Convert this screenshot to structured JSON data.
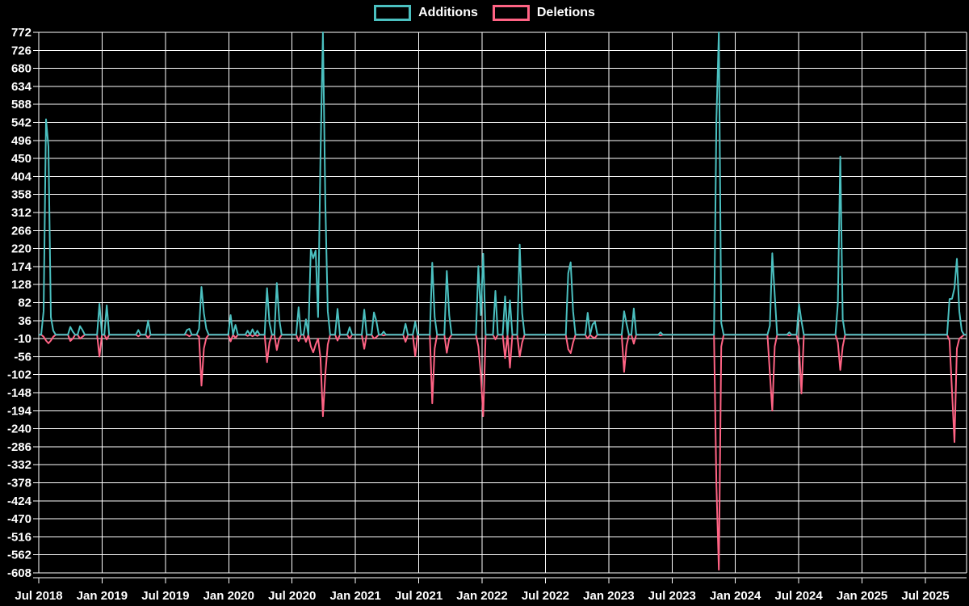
{
  "chart_data": {
    "type": "line",
    "title": "",
    "legend_position": "top",
    "background_color": "#000000",
    "grid_color": "#ffffff",
    "text_color": "#ffffff",
    "series": [
      {
        "name": "Additions",
        "color": "#4bc0c0"
      },
      {
        "name": "Deletions",
        "color": "#ff6384"
      }
    ],
    "y_axis": {
      "min": -608,
      "max": 772,
      "step": 46,
      "tick_labels": [
        "772",
        "726",
        "680",
        "634",
        "588",
        "542",
        "496",
        "450",
        "404",
        "358",
        "312",
        "266",
        "220",
        "174",
        "128",
        "82",
        "36",
        "-10",
        "-56",
        "-102",
        "-148",
        "-194",
        "-240",
        "-286",
        "-332",
        "-378",
        "-424",
        "-470",
        "-516",
        "-562",
        "-608"
      ]
    },
    "x_axis": {
      "tick_labels": [
        "Jul 2018",
        "Jan 2019",
        "Jul 2019",
        "Jan 2020",
        "Jul 2020",
        "Jan 2021",
        "Jul 2021",
        "Jan 2022",
        "Jul 2022",
        "Jan 2023",
        "Jul 2023",
        "Jan 2024",
        "Jul 2024",
        "Jan 2025",
        "Jul 2025"
      ]
    },
    "weeks": {
      "start_date": "2018-07-08",
      "count": 383
    },
    "default_additions": 0,
    "default_deletions": 0,
    "points": [
      {
        "week": 2,
        "date": "2018-07-22",
        "additions": 60,
        "deletions": -5
      },
      {
        "week": 3,
        "date": "2018-07-29",
        "additions": 550,
        "deletions": -15
      },
      {
        "week": 4,
        "date": "2018-08-05",
        "additions": 480,
        "deletions": -22
      },
      {
        "week": 5,
        "date": "2018-08-12",
        "additions": 45,
        "deletions": -15
      },
      {
        "week": 6,
        "date": "2018-08-19",
        "additions": 10,
        "deletions": -5
      },
      {
        "week": 13,
        "date": "2018-10-07",
        "additions": 20,
        "deletions": -16
      },
      {
        "week": 14,
        "date": "2018-10-14",
        "additions": 8,
        "deletions": -10
      },
      {
        "week": 17,
        "date": "2018-11-04",
        "additions": 22,
        "deletions": -10
      },
      {
        "week": 18,
        "date": "2018-11-11",
        "additions": 12,
        "deletions": -5
      },
      {
        "week": 25,
        "date": "2018-12-30",
        "additions": 79,
        "deletions": -56
      },
      {
        "week": 28,
        "date": "2019-01-20",
        "additions": 75,
        "deletions": -12
      },
      {
        "week": 41,
        "date": "2019-04-21",
        "additions": 12,
        "deletions": -4
      },
      {
        "week": 45,
        "date": "2019-05-19",
        "additions": 36,
        "deletions": -8
      },
      {
        "week": 61,
        "date": "2019-09-08",
        "additions": 12,
        "deletions": 0
      },
      {
        "week": 62,
        "date": "2019-09-15",
        "additions": 15,
        "deletions": -4
      },
      {
        "week": 66,
        "date": "2019-10-13",
        "additions": 15,
        "deletions": -5
      },
      {
        "week": 67,
        "date": "2019-10-20",
        "additions": 122,
        "deletions": -130
      },
      {
        "week": 68,
        "date": "2019-10-27",
        "additions": 55,
        "deletions": -35
      },
      {
        "week": 69,
        "date": "2019-11-03",
        "additions": 15,
        "deletions": -8
      },
      {
        "week": 79,
        "date": "2020-01-12",
        "additions": 50,
        "deletions": -17
      },
      {
        "week": 81,
        "date": "2020-01-26",
        "additions": 25,
        "deletions": -8
      },
      {
        "week": 86,
        "date": "2020-03-01",
        "additions": 10,
        "deletions": -3
      },
      {
        "week": 88,
        "date": "2020-03-15",
        "additions": 14,
        "deletions": -4
      },
      {
        "week": 90,
        "date": "2020-03-29",
        "additions": 10,
        "deletions": -3
      },
      {
        "week": 94,
        "date": "2020-04-26",
        "additions": 119,
        "deletions": -70
      },
      {
        "week": 95,
        "date": "2020-05-03",
        "additions": 30,
        "deletions": -20
      },
      {
        "week": 98,
        "date": "2020-05-24",
        "additions": 132,
        "deletions": -39
      },
      {
        "week": 99,
        "date": "2020-05-31",
        "additions": 40,
        "deletions": -10
      },
      {
        "week": 107,
        "date": "2020-07-26",
        "additions": 70,
        "deletions": -16
      },
      {
        "week": 110,
        "date": "2020-08-16",
        "additions": 39,
        "deletions": -18
      },
      {
        "week": 112,
        "date": "2020-08-30",
        "additions": 218,
        "deletions": -30
      },
      {
        "week": 113,
        "date": "2020-09-06",
        "additions": 195,
        "deletions": -45
      },
      {
        "week": 114,
        "date": "2020-09-13",
        "additions": 215,
        "deletions": -25
      },
      {
        "week": 115,
        "date": "2020-09-20",
        "additions": 45,
        "deletions": -10
      },
      {
        "week": 116,
        "date": "2020-09-27",
        "additions": 456,
        "deletions": -60
      },
      {
        "week": 117,
        "date": "2020-10-04",
        "additions": 772,
        "deletions": -208
      },
      {
        "week": 118,
        "date": "2020-10-11",
        "additions": 335,
        "deletions": -100
      },
      {
        "week": 119,
        "date": "2020-10-18",
        "additions": 60,
        "deletions": -25
      },
      {
        "week": 123,
        "date": "2020-11-15",
        "additions": 66,
        "deletions": -15
      },
      {
        "week": 128,
        "date": "2020-12-20",
        "additions": 19,
        "deletions": -10
      },
      {
        "week": 134,
        "date": "2021-01-31",
        "additions": 64,
        "deletions": -36
      },
      {
        "week": 138,
        "date": "2021-02-28",
        "additions": 57,
        "deletions": -10
      },
      {
        "week": 139,
        "date": "2021-03-07",
        "additions": 35,
        "deletions": -6
      },
      {
        "week": 142,
        "date": "2021-03-28",
        "additions": 8,
        "deletions": -2
      },
      {
        "week": 151,
        "date": "2021-05-30",
        "additions": 28,
        "deletions": -18
      },
      {
        "week": 155,
        "date": "2021-06-27",
        "additions": 33,
        "deletions": -55
      },
      {
        "week": 162,
        "date": "2021-08-15",
        "additions": 184,
        "deletions": -175
      },
      {
        "week": 163,
        "date": "2021-08-22",
        "additions": 45,
        "deletions": -35
      },
      {
        "week": 168,
        "date": "2021-09-26",
        "additions": 163,
        "deletions": -46
      },
      {
        "week": 169,
        "date": "2021-10-03",
        "additions": 50,
        "deletions": -10
      },
      {
        "week": 181,
        "date": "2021-12-26",
        "additions": 175,
        "deletions": -30
      },
      {
        "week": 182,
        "date": "2022-01-02",
        "additions": 50,
        "deletions": -100
      },
      {
        "week": 183,
        "date": "2022-01-09",
        "additions": 207,
        "deletions": -208
      },
      {
        "week": 188,
        "date": "2022-02-13",
        "additions": 112,
        "deletions": -12
      },
      {
        "week": 192,
        "date": "2022-03-13",
        "additions": 98,
        "deletions": -60
      },
      {
        "week": 194,
        "date": "2022-03-27",
        "additions": 88,
        "deletions": -84
      },
      {
        "week": 198,
        "date": "2022-04-24",
        "additions": 230,
        "deletions": -56
      },
      {
        "week": 199,
        "date": "2022-05-01",
        "additions": 55,
        "deletions": -20
      },
      {
        "week": 218,
        "date": "2022-09-11",
        "additions": 157,
        "deletions": -37
      },
      {
        "week": 219,
        "date": "2022-09-18",
        "additions": 185,
        "deletions": -47
      },
      {
        "week": 220,
        "date": "2022-09-25",
        "additions": 60,
        "deletions": -20
      },
      {
        "week": 226,
        "date": "2022-11-06",
        "additions": 56,
        "deletions": -10
      },
      {
        "week": 228,
        "date": "2022-11-20",
        "additions": 26,
        "deletions": -6
      },
      {
        "week": 229,
        "date": "2022-11-27",
        "additions": 33,
        "deletions": -8
      },
      {
        "week": 241,
        "date": "2023-02-19",
        "additions": 60,
        "deletions": -95
      },
      {
        "week": 242,
        "date": "2023-02-26",
        "additions": 28,
        "deletions": -28
      },
      {
        "week": 245,
        "date": "2023-03-19",
        "additions": 67,
        "deletions": -23
      },
      {
        "week": 256,
        "date": "2023-06-04",
        "additions": 6,
        "deletions": -2
      },
      {
        "week": 279,
        "date": "2023-11-12",
        "additions": 550,
        "deletions": -384
      },
      {
        "week": 280,
        "date": "2023-11-19",
        "additions": 772,
        "deletions": -600
      },
      {
        "week": 281,
        "date": "2023-11-26",
        "additions": 30,
        "deletions": -30
      },
      {
        "week": 301,
        "date": "2024-04-14",
        "additions": 23,
        "deletions": -98
      },
      {
        "week": 302,
        "date": "2024-04-21",
        "additions": 208,
        "deletions": -194
      },
      {
        "week": 303,
        "date": "2024-04-28",
        "additions": 102,
        "deletions": -30
      },
      {
        "week": 309,
        "date": "2024-06-09",
        "additions": 6,
        "deletions": -2
      },
      {
        "week": 313,
        "date": "2024-07-07",
        "additions": 78,
        "deletions": -30
      },
      {
        "week": 314,
        "date": "2024-07-14",
        "additions": 35,
        "deletions": -150
      },
      {
        "week": 329,
        "date": "2024-10-27",
        "additions": 80,
        "deletions": -20
      },
      {
        "week": 330,
        "date": "2024-11-03",
        "additions": 455,
        "deletions": -90
      },
      {
        "week": 331,
        "date": "2024-11-10",
        "additions": 40,
        "deletions": -30
      },
      {
        "week": 375,
        "date": "2025-09-14",
        "additions": 91,
        "deletions": -15
      },
      {
        "week": 376,
        "date": "2025-09-21",
        "additions": 92,
        "deletions": -146
      },
      {
        "week": 377,
        "date": "2025-09-28",
        "additions": 119,
        "deletions": -274
      },
      {
        "week": 378,
        "date": "2025-10-05",
        "additions": 194,
        "deletions": -35
      },
      {
        "week": 379,
        "date": "2025-10-12",
        "additions": 60,
        "deletions": -10
      },
      {
        "week": 380,
        "date": "2025-10-19",
        "additions": 10,
        "deletions": -5
      }
    ]
  }
}
